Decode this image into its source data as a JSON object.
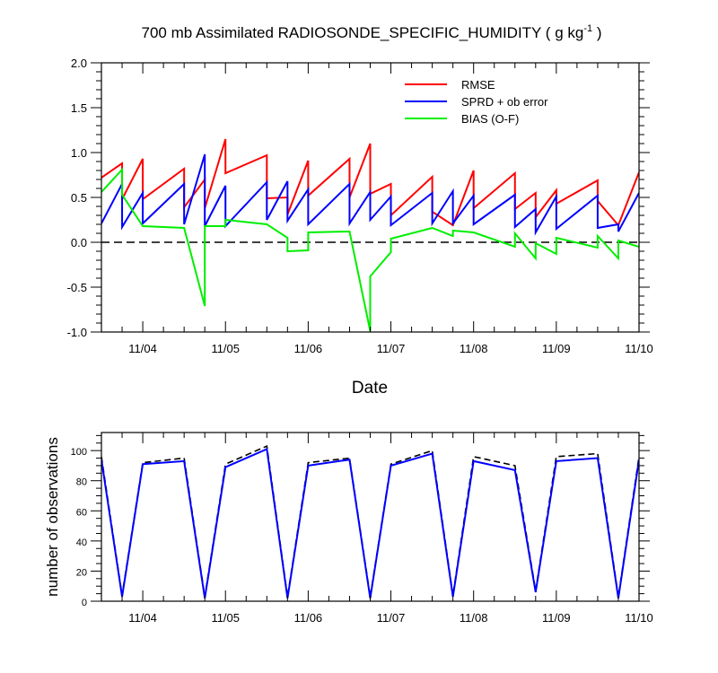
{
  "chart_data": [
    {
      "type": "line",
      "title_main": "700 mb Assimilated RADIOSONDE_SPECIFIC_HUMIDITY ( g kg",
      "title_sup": "-1",
      "title_end": " )",
      "xlabel": "Date",
      "ylabel": "",
      "xlim": [
        0,
        6.5
      ],
      "ylim": [
        -1.0,
        2.0
      ],
      "x_ticks": [
        0.5,
        1.5,
        2.5,
        3.5,
        4.5,
        5.5,
        6.5
      ],
      "x_tick_labels": [
        "11/04",
        "11/05",
        "11/06",
        "11/07",
        "11/08",
        "11/09",
        "11/10"
      ],
      "y_ticks": [
        -1.0,
        -0.5,
        0.0,
        0.5,
        1.0,
        1.5,
        2.0
      ],
      "y_tick_labels": [
        "-1.0",
        "-0.5",
        "0.0",
        "0.5",
        "1.0",
        "1.5",
        "2.0"
      ],
      "zero_line": true,
      "legend_position": "top-right",
      "series": [
        {
          "name": "RMSE",
          "color": "#ff0000",
          "points": [
            [
              0.0,
              0.72
            ],
            [
              0.25,
              0.88
            ],
            [
              0.25,
              0.48
            ],
            [
              0.5,
              0.93
            ],
            [
              0.5,
              0.48
            ],
            [
              1.0,
              0.82
            ],
            [
              1.0,
              0.39
            ],
            [
              1.25,
              0.7
            ],
            [
              1.25,
              0.38
            ],
            [
              1.5,
              1.15
            ],
            [
              1.5,
              0.77
            ],
            [
              2.0,
              0.97
            ],
            [
              2.0,
              0.49
            ],
            [
              2.25,
              0.5
            ],
            [
              2.25,
              0.31
            ],
            [
              2.5,
              0.91
            ],
            [
              2.5,
              0.52
            ],
            [
              3.0,
              0.93
            ],
            [
              3.0,
              0.5
            ],
            [
              3.25,
              1.1
            ],
            [
              3.25,
              0.54
            ],
            [
              3.5,
              0.65
            ],
            [
              3.5,
              0.3
            ],
            [
              4.0,
              0.73
            ],
            [
              4.0,
              0.34
            ],
            [
              4.25,
              0.19
            ],
            [
              4.5,
              0.8
            ],
            [
              4.5,
              0.38
            ],
            [
              5.0,
              0.77
            ],
            [
              5.0,
              0.37
            ],
            [
              5.25,
              0.55
            ],
            [
              5.25,
              0.28
            ],
            [
              5.5,
              0.58
            ],
            [
              5.5,
              0.43
            ],
            [
              6.0,
              0.69
            ],
            [
              6.0,
              0.46
            ],
            [
              6.25,
              0.19
            ],
            [
              6.5,
              0.78
            ]
          ]
        },
        {
          "name": "SPRD + ob error",
          "color": "#0000ff",
          "points": [
            [
              0.0,
              0.21
            ],
            [
              0.25,
              0.65
            ],
            [
              0.25,
              0.17
            ],
            [
              0.5,
              0.55
            ],
            [
              0.5,
              0.21
            ],
            [
              1.0,
              0.65
            ],
            [
              1.0,
              0.2
            ],
            [
              1.25,
              0.98
            ],
            [
              1.25,
              0.18
            ],
            [
              1.5,
              0.63
            ],
            [
              1.5,
              0.18
            ],
            [
              2.0,
              0.67
            ],
            [
              2.0,
              0.25
            ],
            [
              2.25,
              0.68
            ],
            [
              2.25,
              0.24
            ],
            [
              2.5,
              0.59
            ],
            [
              2.5,
              0.2
            ],
            [
              3.0,
              0.65
            ],
            [
              3.0,
              0.21
            ],
            [
              3.25,
              0.56
            ],
            [
              3.25,
              0.25
            ],
            [
              3.5,
              0.51
            ],
            [
              3.5,
              0.19
            ],
            [
              4.0,
              0.55
            ],
            [
              4.0,
              0.21
            ],
            [
              4.25,
              0.57
            ],
            [
              4.25,
              0.21
            ],
            [
              4.5,
              0.52
            ],
            [
              4.5,
              0.2
            ],
            [
              5.0,
              0.53
            ],
            [
              5.0,
              0.17
            ],
            [
              5.25,
              0.37
            ],
            [
              5.25,
              0.11
            ],
            [
              5.5,
              0.51
            ],
            [
              5.5,
              0.15
            ],
            [
              6.0,
              0.52
            ],
            [
              6.0,
              0.16
            ],
            [
              6.25,
              0.2
            ],
            [
              6.25,
              0.12
            ],
            [
              6.5,
              0.55
            ]
          ]
        },
        {
          "name": "BIAS (O-F)",
          "color": "#00ee00",
          "points": [
            [
              0.0,
              0.56
            ],
            [
              0.25,
              0.81
            ],
            [
              0.25,
              0.53
            ],
            [
              0.5,
              0.18
            ],
            [
              1.0,
              0.16
            ],
            [
              1.25,
              -0.71
            ],
            [
              1.25,
              0.18
            ],
            [
              1.5,
              0.18
            ],
            [
              1.5,
              0.25
            ],
            [
              2.0,
              0.2
            ],
            [
              2.25,
              0.05
            ],
            [
              2.25,
              -0.1
            ],
            [
              2.5,
              -0.09
            ],
            [
              2.5,
              0.11
            ],
            [
              3.0,
              0.12
            ],
            [
              3.25,
              -0.99
            ],
            [
              3.25,
              -0.38
            ],
            [
              3.5,
              -0.11
            ],
            [
              3.5,
              0.04
            ],
            [
              4.0,
              0.16
            ],
            [
              4.25,
              0.07
            ],
            [
              4.25,
              0.13
            ],
            [
              4.5,
              0.11
            ],
            [
              5.0,
              -0.05
            ],
            [
              5.0,
              0.1
            ],
            [
              5.25,
              -0.18
            ],
            [
              5.25,
              -0.01
            ],
            [
              5.5,
              -0.13
            ],
            [
              5.5,
              0.05
            ],
            [
              6.0,
              -0.06
            ],
            [
              6.0,
              0.07
            ],
            [
              6.25,
              -0.18
            ],
            [
              6.25,
              0.02
            ],
            [
              6.5,
              -0.05
            ]
          ]
        }
      ]
    },
    {
      "type": "line",
      "title": "",
      "xlabel": "",
      "ylabel": "number of observations",
      "xlim": [
        0,
        6.5
      ],
      "ylim": [
        0,
        112
      ],
      "x_ticks": [
        0.5,
        1.5,
        2.5,
        3.5,
        4.5,
        5.5,
        6.5
      ],
      "x_tick_labels": [
        "11/04",
        "11/05",
        "11/06",
        "11/07",
        "11/08",
        "11/09",
        "11/10"
      ],
      "y_ticks": [
        0,
        20,
        40,
        60,
        80,
        100
      ],
      "y_tick_labels": [
        "0",
        "20",
        "40",
        "60",
        "80",
        "100"
      ],
      "series": [
        {
          "style": "dashed",
          "color": "#000000",
          "points": [
            [
              0.0,
              96
            ],
            [
              0.25,
              4
            ],
            [
              0.5,
              92
            ],
            [
              1.0,
              95
            ],
            [
              1.25,
              3
            ],
            [
              1.5,
              91
            ],
            [
              2.0,
              103
            ],
            [
              2.25,
              3
            ],
            [
              2.5,
              92
            ],
            [
              3.0,
              95
            ],
            [
              3.25,
              3
            ],
            [
              3.5,
              91
            ],
            [
              4.0,
              100
            ],
            [
              4.25,
              4
            ],
            [
              4.5,
              96
            ],
            [
              5.0,
              90
            ],
            [
              5.25,
              7
            ],
            [
              5.5,
              96
            ],
            [
              6.0,
              98
            ],
            [
              6.25,
              3
            ],
            [
              6.5,
              96
            ]
          ]
        },
        {
          "style": "solid",
          "color": "#0000ff",
          "points": [
            [
              0.0,
              94
            ],
            [
              0.25,
              3
            ],
            [
              0.5,
              91
            ],
            [
              1.0,
              93
            ],
            [
              1.25,
              2
            ],
            [
              1.5,
              89
            ],
            [
              2.0,
              101
            ],
            [
              2.25,
              2
            ],
            [
              2.5,
              90
            ],
            [
              3.0,
              94
            ],
            [
              3.25,
              2
            ],
            [
              3.5,
              90
            ],
            [
              4.0,
              98
            ],
            [
              4.25,
              3
            ],
            [
              4.5,
              93
            ],
            [
              5.0,
              87
            ],
            [
              5.25,
              6
            ],
            [
              5.5,
              93
            ],
            [
              6.0,
              95
            ],
            [
              6.25,
              2
            ],
            [
              6.5,
              94
            ]
          ]
        }
      ]
    }
  ]
}
